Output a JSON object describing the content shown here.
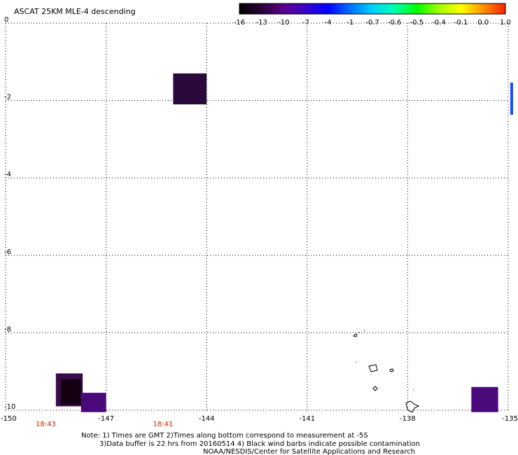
{
  "title": "ASCAT 25KM MLE-4 descending",
  "colorbar": {
    "labels": [
      "-16",
      "-13",
      "-10",
      "-7",
      "-4",
      "-1",
      "-0.7",
      "-0.6",
      "-0.5",
      "-0.4",
      "-0.1",
      "0.0",
      "1.0"
    ],
    "colors": [
      "#000000",
      "#2a0038",
      "#5a0090",
      "#3a00c8",
      "#0000ff",
      "#0070ff",
      "#00d0ff",
      "#00ffb0",
      "#00ff00",
      "#a0ff00",
      "#ffff00",
      "#ff9000",
      "#ff2000"
    ]
  },
  "y_axis": {
    "labels": [
      "0",
      "-2",
      "-4",
      "-6",
      "-8",
      "-10"
    ],
    "values": [
      0,
      -2,
      -4,
      -6,
      -8,
      -10
    ]
  },
  "x_axis": {
    "labels": [
      "-150",
      "-147",
      "-144",
      "-141",
      "-138",
      "-135"
    ],
    "values": [
      -150,
      -147,
      -144,
      -141,
      -138,
      -135
    ]
  },
  "times": [
    {
      "label": "18:43",
      "lon": -148.8
    },
    {
      "label": "18:41",
      "lon": -145.3
    }
  ],
  "cells": [
    {
      "lon1": -145.0,
      "lon2": -144.0,
      "lat1": -1.3,
      "lat2": -2.1,
      "color": "#2a0a3a"
    },
    {
      "lon1": -148.5,
      "lon2": -147.7,
      "lat1": -9.05,
      "lat2": -9.9,
      "color": "#3a0a4a"
    },
    {
      "lon1": -148.35,
      "lon2": -147.75,
      "lat1": -9.2,
      "lat2": -9.85,
      "color": "#120010"
    },
    {
      "lon1": -147.75,
      "lon2": -147.0,
      "lat1": -9.55,
      "lat2": -10.05,
      "color": "#4b0a7a"
    },
    {
      "lon1": -136.1,
      "lon2": -135.3,
      "lat1": -9.4,
      "lat2": -10.05,
      "color": "#4b0a7a"
    }
  ],
  "notes": [
    "Note: 1) Times are GMT 2)Times along bottom correspond to measurement at -5S",
    "3)Data buffer is 22 hrs from 20160514 4) Black wind barbs indicate possible contamination",
    "NOAA/NESDIS/Center for Satellite Applications and Research"
  ]
}
